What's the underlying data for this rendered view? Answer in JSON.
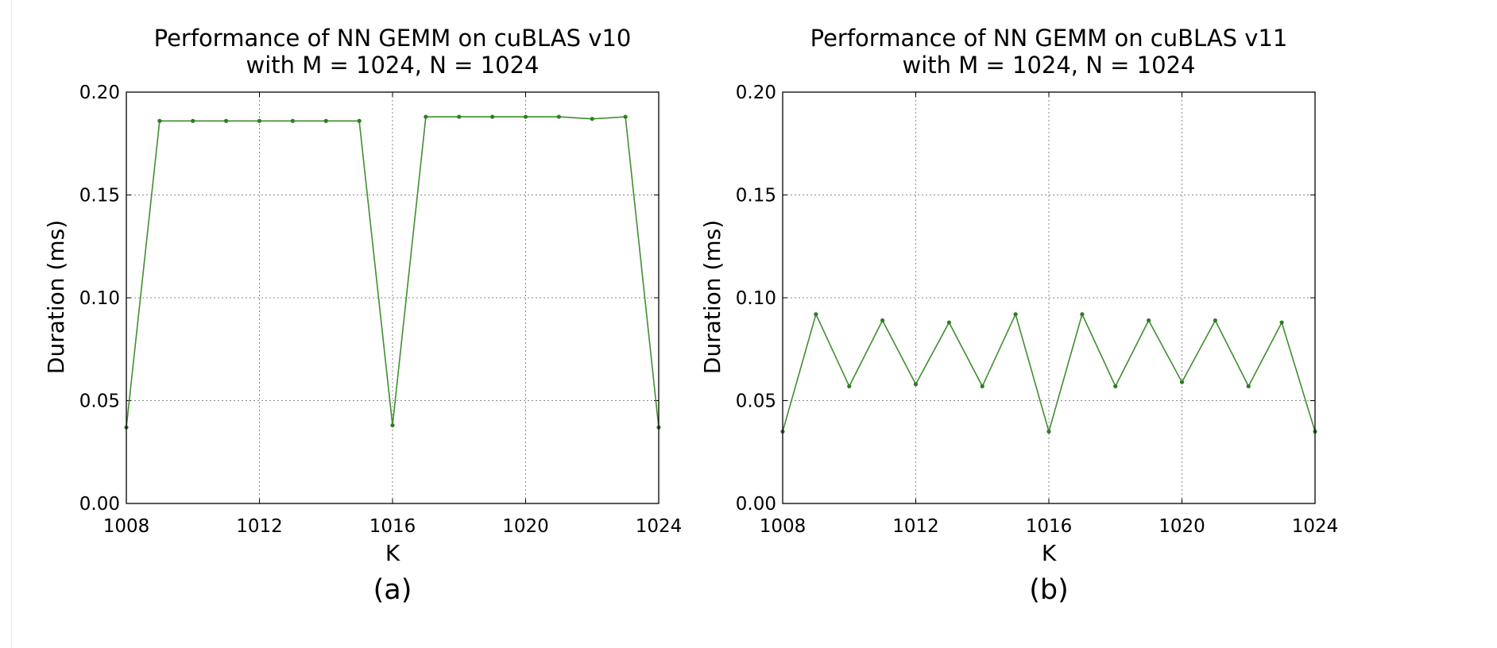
{
  "chart_data": [
    {
      "type": "line",
      "title_line1": "Performance of NN GEMM on cuBLAS v10",
      "title_line2": "with M = 1024, N = 1024",
      "xlabel": "K",
      "ylabel": "Duration (ms)",
      "caption": "(a)",
      "xlim": [
        1008,
        1024
      ],
      "ylim": [
        0.0,
        0.2
      ],
      "x_ticks": [
        "1008",
        "1012",
        "1016",
        "1020",
        "1024"
      ],
      "y_ticks": [
        "0.00",
        "0.05",
        "0.10",
        "0.15",
        "0.20"
      ],
      "grid": true,
      "series": [
        {
          "x": [
            1008,
            1009,
            1010,
            1011,
            1012,
            1013,
            1014,
            1015,
            1016,
            1017,
            1018,
            1019,
            1020,
            1021,
            1022,
            1023,
            1024
          ],
          "values": [
            0.037,
            0.186,
            0.186,
            0.186,
            0.186,
            0.186,
            0.186,
            0.186,
            0.038,
            0.188,
            0.188,
            0.188,
            0.188,
            0.188,
            0.187,
            0.188,
            0.037
          ]
        }
      ]
    },
    {
      "type": "line",
      "title_line1": "Performance of NN GEMM on cuBLAS v11",
      "title_line2": "with M = 1024, N = 1024",
      "xlabel": "K",
      "ylabel": "Duration (ms)",
      "caption": "(b)",
      "xlim": [
        1008,
        1024
      ],
      "ylim": [
        0.0,
        0.2
      ],
      "x_ticks": [
        "1008",
        "1012",
        "1016",
        "1020",
        "1024"
      ],
      "y_ticks": [
        "0.00",
        "0.05",
        "0.10",
        "0.15",
        "0.20"
      ],
      "grid": true,
      "series": [
        {
          "x": [
            1008,
            1009,
            1010,
            1011,
            1012,
            1013,
            1014,
            1015,
            1016,
            1017,
            1018,
            1019,
            1020,
            1021,
            1022,
            1023,
            1024
          ],
          "values": [
            0.035,
            0.092,
            0.057,
            0.089,
            0.058,
            0.088,
            0.057,
            0.092,
            0.035,
            0.092,
            0.057,
            0.089,
            0.059,
            0.089,
            0.057,
            0.088,
            0.035
          ]
        }
      ]
    }
  ],
  "colors": {
    "line": "#3f8f2f",
    "marker": "#2e7d22",
    "grid": "#888888"
  }
}
